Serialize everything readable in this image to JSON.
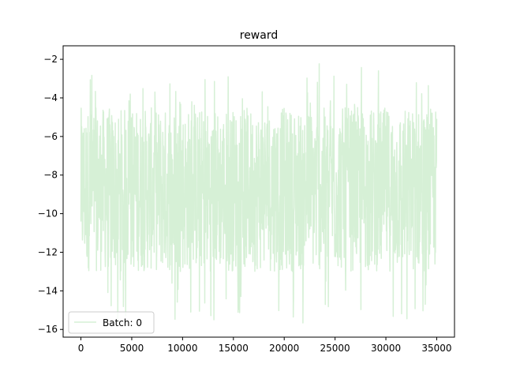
{
  "chart_data": {
    "type": "line",
    "title": "reward",
    "xlabel": "",
    "ylabel": "",
    "xlim": [
      -1750,
      36750
    ],
    "ylim": [
      -16.4,
      -1.3
    ],
    "xticks": [
      0,
      5000,
      10000,
      15000,
      20000,
      25000,
      30000,
      35000
    ],
    "xtick_labels": [
      "0",
      "5000",
      "10000",
      "15000",
      "20000",
      "25000",
      "30000",
      "35000"
    ],
    "yticks": [
      -16,
      -14,
      -12,
      -10,
      -8,
      -6,
      -4,
      -2
    ],
    "ytick_labels": [
      "−16",
      "−14",
      "−12",
      "−10",
      "−8",
      "−6",
      "−4",
      "−2"
    ],
    "grid": false,
    "legend": {
      "position": "lower-left"
    },
    "series": [
      {
        "name": "Batch: 0",
        "color": "#d6f0d6",
        "x_range": [
          0,
          35000
        ],
        "typical_range": [
          -13,
          -4.5
        ],
        "observed_range": [
          -15.7,
          -1.9
        ]
      }
    ]
  }
}
